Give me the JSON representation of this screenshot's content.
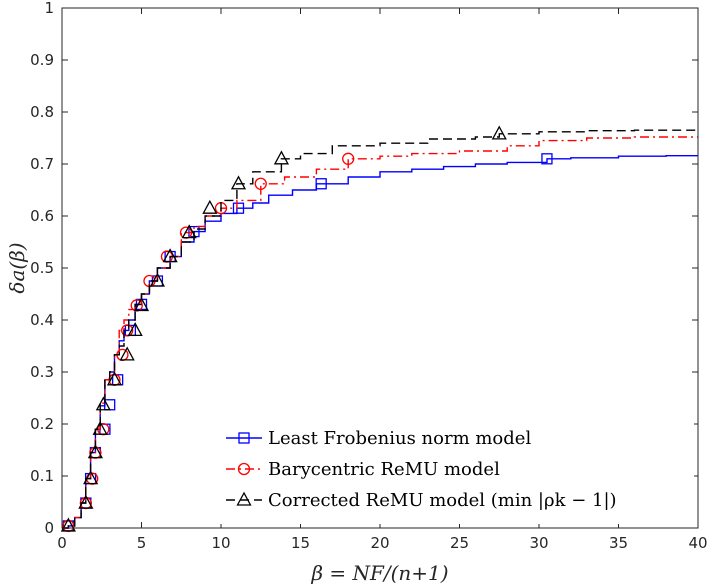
{
  "chart_data": {
    "type": "line",
    "title": "",
    "xlabel": "β = NF/(n+1)",
    "ylabel": "δa(β)",
    "xlim": [
      0,
      40
    ],
    "ylim": [
      0,
      1
    ],
    "xticks": [
      0,
      5,
      10,
      15,
      20,
      25,
      30,
      35,
      40
    ],
    "yticks": [
      0,
      0.1,
      0.2,
      0.3,
      0.4,
      0.5,
      0.6,
      0.7,
      0.8,
      0.9,
      1
    ],
    "grid": false,
    "legend_position": "bottom-right",
    "series": [
      {
        "name": "Least Frobenius norm model",
        "color": "#0000ff",
        "line_style": "solid",
        "marker": "square",
        "x": [
          0,
          0.4,
          0.8,
          1.2,
          1.5,
          1.8,
          2.1,
          2.4,
          2.7,
          3.0,
          3.3,
          3.6,
          3.9,
          4.2,
          4.6,
          5.0,
          5.5,
          6.0,
          6.8,
          7.5,
          8.3,
          9.0,
          10.0,
          11.0,
          12.0,
          13.0,
          14.5,
          16.0,
          18.0,
          20.0,
          22.0,
          24.0,
          26.0,
          28.0,
          30.5,
          32.0,
          35.0,
          38.0,
          40.0
        ],
        "y": [
          0,
          0.004,
          0.02,
          0.048,
          0.095,
          0.145,
          0.19,
          0.235,
          0.285,
          0.3,
          0.333,
          0.36,
          0.38,
          0.4,
          0.43,
          0.45,
          0.475,
          0.5,
          0.522,
          0.55,
          0.57,
          0.59,
          0.605,
          0.615,
          0.625,
          0.64,
          0.65,
          0.662,
          0.675,
          0.685,
          0.69,
          0.695,
          0.7,
          0.703,
          0.71,
          0.712,
          0.715,
          0.716,
          0.716
        ],
        "marker_x": [
          0.4,
          1.5,
          1.8,
          2.1,
          2.7,
          3.0,
          3.5,
          4.3,
          5.0,
          6.0,
          6.8,
          8.3,
          11.1,
          16.3,
          30.5
        ],
        "marker_y": [
          0.004,
          0.048,
          0.095,
          0.145,
          0.19,
          0.237,
          0.285,
          0.38,
          0.43,
          0.475,
          0.522,
          0.57,
          0.615,
          0.662,
          0.71
        ]
      },
      {
        "name": "Barycentric ReMU model",
        "color": "#ff0000",
        "line_style": "dashdot",
        "marker": "circle",
        "x": [
          0,
          0.4,
          0.8,
          1.2,
          1.5,
          1.8,
          2.1,
          2.4,
          2.7,
          3.0,
          3.3,
          3.6,
          3.9,
          4.2,
          4.6,
          5.0,
          5.5,
          6.0,
          6.8,
          7.5,
          8.3,
          9.0,
          10.0,
          11.0,
          12.5,
          14.0,
          16.0,
          18.0,
          20.0,
          22.0,
          25.0,
          28.0,
          30.0,
          33.0,
          36.0,
          40.0
        ],
        "y": [
          0,
          0.004,
          0.02,
          0.048,
          0.095,
          0.145,
          0.19,
          0.24,
          0.285,
          0.3,
          0.333,
          0.38,
          0.4,
          0.42,
          0.43,
          0.45,
          0.475,
          0.5,
          0.522,
          0.568,
          0.58,
          0.6,
          0.615,
          0.63,
          0.662,
          0.675,
          0.69,
          0.71,
          0.715,
          0.72,
          0.725,
          0.735,
          0.745,
          0.75,
          0.752,
          0.752
        ],
        "marker_x": [
          0.4,
          1.5,
          1.9,
          2.1,
          2.6,
          3.3,
          3.8,
          4.1,
          4.7,
          5.5,
          6.6,
          7.8,
          10.0,
          12.5,
          18.0
        ],
        "marker_y": [
          0.004,
          0.048,
          0.095,
          0.145,
          0.19,
          0.285,
          0.333,
          0.38,
          0.428,
          0.475,
          0.522,
          0.568,
          0.615,
          0.662,
          0.71
        ]
      },
      {
        "name": "Corrected ReMU model (min |ρk − 1|)",
        "color": "#000000",
        "line_style": "dashed",
        "marker": "triangle",
        "x": [
          0,
          0.4,
          0.8,
          1.2,
          1.5,
          1.8,
          2.1,
          2.4,
          2.7,
          3.0,
          3.3,
          3.6,
          3.9,
          4.2,
          4.6,
          5.0,
          5.5,
          6.0,
          6.8,
          7.5,
          8.3,
          9.0,
          10.0,
          11.0,
          12.0,
          13.8,
          15.0,
          17.0,
          20.0,
          23.0,
          26.0,
          27.5,
          30.0,
          33.0,
          36.0,
          40.0
        ],
        "y": [
          0,
          0.004,
          0.02,
          0.048,
          0.095,
          0.145,
          0.19,
          0.24,
          0.285,
          0.3,
          0.333,
          0.35,
          0.38,
          0.4,
          0.43,
          0.45,
          0.475,
          0.5,
          0.522,
          0.55,
          0.575,
          0.6,
          0.63,
          0.662,
          0.685,
          0.71,
          0.72,
          0.735,
          0.74,
          0.748,
          0.752,
          0.758,
          0.762,
          0.764,
          0.765,
          0.765
        ],
        "marker_x": [
          0.4,
          1.5,
          1.8,
          2.1,
          2.4,
          2.6,
          3.3,
          4.1,
          4.6,
          5.0,
          6.0,
          6.8,
          8.0,
          9.3,
          11.1,
          13.8,
          27.5
        ],
        "marker_y": [
          0.004,
          0.048,
          0.095,
          0.145,
          0.19,
          0.237,
          0.285,
          0.333,
          0.38,
          0.428,
          0.475,
          0.522,
          0.568,
          0.615,
          0.662,
          0.71,
          0.758
        ]
      }
    ]
  }
}
